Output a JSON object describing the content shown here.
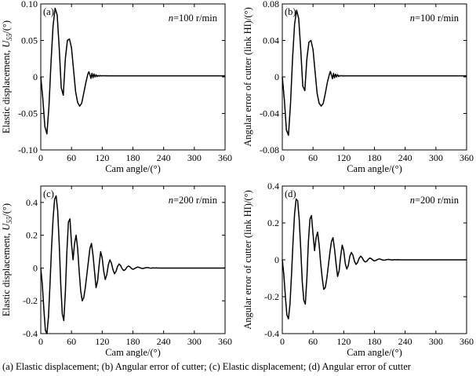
{
  "caption": "(a) Elastic displacement; (b) Angular error of cutter; (c) Elastic displacement; (d) Angular error of cutter",
  "chart_data": [
    {
      "type": "line",
      "panel_label": "(a)",
      "annotation": {
        "italic": "n",
        "rest": "=100 r/min"
      },
      "xlabel": "Cam angle/(°)",
      "ylabel": {
        "main": "Elastic displacement, ",
        "italic": "U",
        "sub": "55",
        "tail": "/(°)"
      },
      "xlim": [
        0,
        360
      ],
      "ylim": [
        -0.1,
        0.1
      ],
      "xticks": [
        0,
        60,
        120,
        180,
        240,
        300,
        360
      ],
      "xtick_labels": [
        "0",
        "60",
        "120",
        "180",
        "240",
        "300",
        "360"
      ],
      "yticks": [
        -0.1,
        -0.05,
        0,
        0.05,
        0.1
      ],
      "ytick_labels": [
        "-0.10",
        "-0.05",
        "0",
        "0.05",
        "0.10"
      ],
      "series": [
        {
          "x": [
            0,
            4,
            8,
            12,
            16,
            20,
            24,
            28,
            32,
            36,
            40,
            44,
            48,
            52,
            56,
            60,
            64,
            68,
            72,
            76,
            80,
            84,
            88,
            92,
            94,
            96,
            98,
            100,
            102,
            104,
            106,
            108,
            110,
            112,
            114,
            116,
            118,
            120,
            122,
            124,
            126,
            128,
            132,
            140,
            160,
            200,
            260,
            360
          ],
          "y": [
            0,
            -0.03,
            -0.068,
            -0.078,
            -0.04,
            0.02,
            0.07,
            0.094,
            0.085,
            0.04,
            -0.015,
            -0.025,
            0.025,
            0.05,
            0.052,
            0.04,
            0.01,
            -0.02,
            -0.035,
            -0.04,
            -0.036,
            -0.022,
            -0.008,
            0.004,
            0.007,
            0.003,
            -0.002,
            0.005,
            -0.001,
            0.004,
            0,
            0.003,
            0.0005,
            0.002,
            0.001,
            0.002,
            0.0012,
            0.0018,
            0.0014,
            0.0017,
            0.0015,
            0.0016,
            0.0015,
            0.0015,
            0.0015,
            0.0015,
            0.0015,
            0.0015
          ]
        }
      ]
    },
    {
      "type": "line",
      "panel_label": "(b)",
      "annotation": {
        "italic": "n",
        "rest": "=100 r/min"
      },
      "xlabel": "Cam angle/(°)",
      "ylabel": {
        "main": "Angular error of cutter (link HI)/(°)",
        "italic": "",
        "sub": "",
        "tail": ""
      },
      "xlim": [
        0,
        360
      ],
      "ylim": [
        -0.08,
        0.08
      ],
      "xticks": [
        0,
        60,
        120,
        180,
        240,
        300,
        360
      ],
      "xtick_labels": [
        "0",
        "60",
        "120",
        "180",
        "240",
        "300",
        "360"
      ],
      "yticks": [
        -0.08,
        -0.04,
        0,
        0.04,
        0.08
      ],
      "ytick_labels": [
        "-0.08",
        "-0.04",
        "0",
        "0.04",
        "0.08"
      ],
      "series": [
        {
          "x": [
            0,
            4,
            8,
            12,
            16,
            20,
            24,
            28,
            32,
            36,
            40,
            44,
            48,
            52,
            56,
            60,
            64,
            68,
            72,
            76,
            80,
            84,
            88,
            92,
            94,
            96,
            98,
            100,
            102,
            104,
            106,
            108,
            110,
            112,
            114,
            116,
            118,
            120,
            122,
            124,
            126,
            128,
            132,
            140,
            160,
            200,
            260,
            360
          ],
          "y": [
            0,
            -0.025,
            -0.058,
            -0.064,
            -0.03,
            0.02,
            0.058,
            0.073,
            0.064,
            0.03,
            -0.01,
            -0.015,
            0.02,
            0.038,
            0.04,
            0.03,
            0.006,
            -0.018,
            -0.029,
            -0.032,
            -0.029,
            -0.018,
            -0.006,
            0.003,
            0.006,
            0.002,
            -0.002,
            0.004,
            -0.001,
            0.003,
            0,
            0.0025,
            0.0005,
            0.0015,
            0.001,
            0.0015,
            0.001,
            0.0013,
            0.0011,
            0.0012,
            0.0012,
            0.0012,
            0.0012,
            0.0012,
            0.0012,
            0.0012,
            0.0012,
            0.0012
          ]
        }
      ]
    },
    {
      "type": "line",
      "panel_label": "(c)",
      "annotation": {
        "italic": "n",
        "rest": "=200 r/min"
      },
      "xlabel": "Cam angle/(°)",
      "ylabel": {
        "main": "Elastic displacement, ",
        "italic": "U",
        "sub": "55",
        "tail": "/(°)"
      },
      "xlim": [
        0,
        360
      ],
      "ylim": [
        -0.4,
        0.5
      ],
      "xticks": [
        0,
        60,
        120,
        180,
        240,
        300,
        360
      ],
      "xtick_labels": [
        "0",
        "60",
        "120",
        "180",
        "240",
        "300",
        "360"
      ],
      "yticks": [
        -0.4,
        -0.2,
        0,
        0.2,
        0.4
      ],
      "ytick_labels": [
        "-0.4",
        "-0.2",
        "0",
        "0.2",
        "0.4"
      ],
      "series": [
        {
          "x": [
            0,
            3,
            6,
            9,
            12,
            15,
            18,
            21,
            24,
            27,
            30,
            33,
            36,
            39,
            42,
            45,
            48,
            51,
            54,
            57,
            60,
            63,
            66,
            69,
            72,
            75,
            78,
            81,
            84,
            87,
            90,
            93,
            96,
            99,
            102,
            105,
            108,
            111,
            114,
            117,
            120,
            123,
            126,
            129,
            132,
            135,
            138,
            141,
            144,
            147,
            150,
            153,
            156,
            159,
            162,
            165,
            168,
            171,
            174,
            177,
            180,
            183,
            186,
            189,
            192,
            195,
            198,
            201,
            204,
            207,
            210,
            213,
            216,
            219,
            222,
            225,
            230,
            240,
            260,
            300,
            360
          ],
          "y": [
            0,
            -0.1,
            -0.25,
            -0.38,
            -0.4,
            -0.3,
            -0.1,
            0.12,
            0.3,
            0.42,
            0.44,
            0.35,
            0.15,
            -0.1,
            -0.28,
            -0.32,
            -0.15,
            0.1,
            0.28,
            0.3,
            0.15,
            0.05,
            0.15,
            0.2,
            0.12,
            -0.02,
            -0.14,
            -0.2,
            -0.18,
            -0.12,
            -0.04,
            0.04,
            0.12,
            0.15,
            0.08,
            -0.02,
            -0.12,
            -0.08,
            0.02,
            0.1,
            0.06,
            -0.02,
            -0.07,
            -0.04,
            0.02,
            0.05,
            0.03,
            -0.01,
            -0.035,
            -0.02,
            0.01,
            0.025,
            0.015,
            -0.005,
            -0.015,
            -0.01,
            0.004,
            0.012,
            0.008,
            -0.002,
            -0.008,
            -0.004,
            0.002,
            0.006,
            0.004,
            0,
            -0.003,
            -0.002,
            0.001,
            0.003,
            0.002,
            0,
            -0.001,
            0.001,
            0,
            0.001,
            0,
            0,
            0,
            0,
            0
          ]
        }
      ]
    },
    {
      "type": "line",
      "panel_label": "(d)",
      "annotation": {
        "italic": "n",
        "rest": "=200 r/min"
      },
      "xlabel": "Cam angle/(°)",
      "ylabel": {
        "main": "Angular error of cutter (link HI)/(°)",
        "italic": "",
        "sub": "",
        "tail": ""
      },
      "xlim": [
        0,
        360
      ],
      "ylim": [
        -0.4,
        0.4
      ],
      "xticks": [
        0,
        60,
        120,
        180,
        240,
        300,
        360
      ],
      "xtick_labels": [
        "0",
        "60",
        "120",
        "180",
        "240",
        "300",
        "360"
      ],
      "yticks": [
        -0.4,
        -0.2,
        0,
        0.2,
        0.4
      ],
      "ytick_labels": [
        "-0.4",
        "-0.2",
        "0",
        "0.2",
        "0.4"
      ],
      "series": [
        {
          "x": [
            0,
            3,
            6,
            9,
            12,
            15,
            18,
            21,
            24,
            27,
            30,
            33,
            36,
            39,
            42,
            45,
            48,
            51,
            54,
            57,
            60,
            63,
            66,
            69,
            72,
            75,
            78,
            81,
            84,
            87,
            90,
            93,
            96,
            99,
            102,
            105,
            108,
            111,
            114,
            117,
            120,
            123,
            126,
            129,
            132,
            135,
            138,
            141,
            144,
            147,
            150,
            153,
            156,
            159,
            162,
            165,
            168,
            171,
            174,
            177,
            180,
            183,
            186,
            189,
            192,
            195,
            198,
            201,
            204,
            207,
            210,
            213,
            216,
            219,
            222,
            225,
            230,
            240,
            260,
            300,
            360
          ],
          "y": [
            0,
            -0.08,
            -0.2,
            -0.3,
            -0.32,
            -0.24,
            -0.08,
            0.1,
            0.25,
            0.33,
            0.32,
            0.22,
            0.06,
            -0.12,
            -0.22,
            -0.24,
            -0.1,
            0.1,
            0.22,
            0.24,
            0.14,
            0.05,
            0.12,
            0.15,
            0.08,
            -0.02,
            -0.1,
            -0.16,
            -0.15,
            -0.1,
            -0.03,
            0.04,
            0.1,
            0.12,
            0.06,
            -0.02,
            -0.09,
            -0.06,
            0.02,
            0.08,
            0.05,
            -0.02,
            -0.05,
            -0.03,
            0.02,
            0.04,
            0.025,
            -0.008,
            -0.025,
            -0.015,
            0.008,
            0.02,
            0.012,
            -0.004,
            -0.012,
            -0.008,
            0.003,
            0.01,
            0.006,
            -0.002,
            -0.006,
            -0.003,
            0.002,
            0.005,
            0.003,
            0,
            -0.002,
            -0.001,
            0.001,
            0.002,
            0.001,
            0,
            -0.001,
            0.001,
            0,
            0.001,
            0,
            0,
            0,
            0,
            0
          ]
        }
      ]
    }
  ]
}
